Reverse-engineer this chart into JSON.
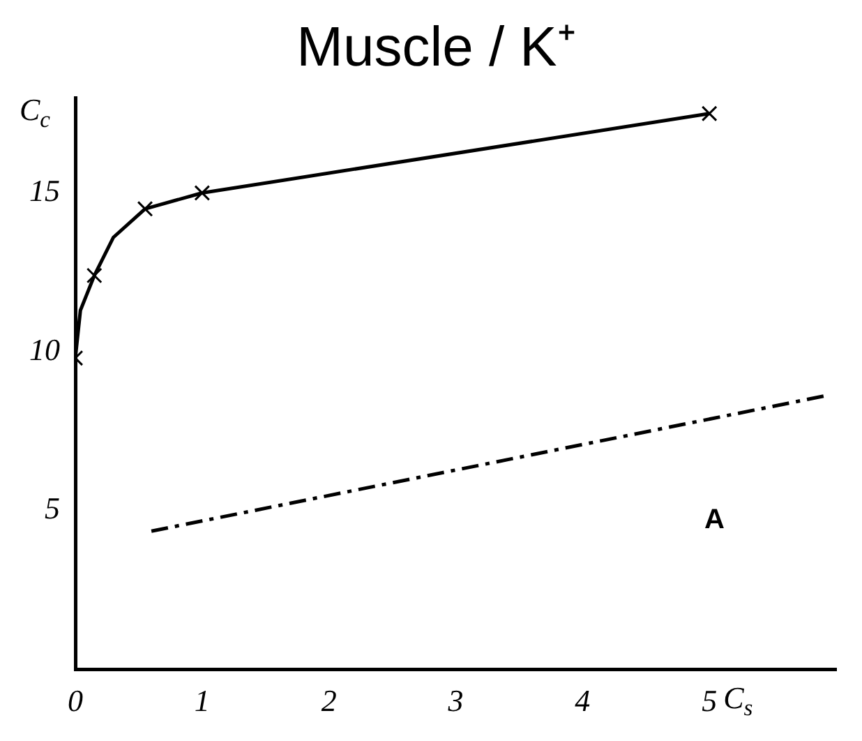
{
  "chart_data": {
    "type": "line",
    "title": "Muscle / K⁺",
    "xlabel": "C$_{s}$",
    "ylabel": "C$_{c}$",
    "xlim": [
      0,
      6
    ],
    "xticks": [
      0,
      1,
      2,
      3,
      4,
      5
    ],
    "ylim": [
      0,
      18
    ],
    "yticks": [
      5,
      10,
      15
    ],
    "grid": false,
    "legend": false,
    "series": [
      {
        "color": "#000000",
        "marker": "none",
        "line_style": "solid",
        "x": [
          0,
          0,
          0.04,
          0.15,
          0.3,
          0.55,
          1,
          5
        ],
        "values": [
          0,
          9.8,
          11.3,
          12.4,
          13.6,
          14.5,
          15,
          17.5
        ]
      },
      {
        "type": "scatter",
        "color": "#000000",
        "marker": "cross",
        "x": [
          0,
          0.15,
          0.55,
          1,
          5
        ],
        "values": [
          9.8,
          12.4,
          14.5,
          15,
          17.5
        ]
      },
      {
        "color": "#000000",
        "marker": "none",
        "line_style": "dashed",
        "x": [
          5.9,
          0.6
        ],
        "values": [
          8.6,
          4.35
        ]
      }
    ],
    "annotations": [
      "A"
    ]
  }
}
